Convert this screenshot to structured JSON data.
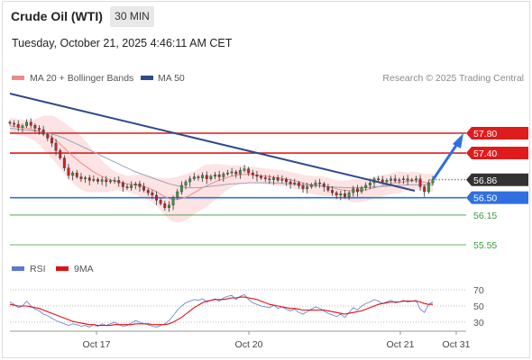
{
  "header": {
    "instrument": "Crude Oil (WTI)",
    "timeframe": "30 MIN",
    "timestamp": "Tuesday, October 21, 2025 4:46:11 AM CET"
  },
  "legend": {
    "items": [
      {
        "label": "MA 20 + Bollinger Bands",
        "color": "#f08a8a"
      },
      {
        "label": "MA 50",
        "color": "#2d4a8a"
      }
    ],
    "copyright": "Research © 2025 Trading Central"
  },
  "rsi_legend": {
    "items": [
      {
        "label": "RSI",
        "color": "#5a78d8"
      },
      {
        "label": "9MA",
        "color": "#dd1111"
      }
    ]
  },
  "chart_data": [
    {
      "type": "candlestick",
      "ylim": [
        55.4,
        58.1
      ],
      "price_levels": [
        {
          "value": 57.8,
          "label": "57.80",
          "kind": "resistance",
          "color": "#e01b1b"
        },
        {
          "value": 57.4,
          "label": "57.40",
          "kind": "resistance",
          "color": "#e01b1b"
        },
        {
          "value": 56.86,
          "label": "56.86",
          "kind": "last_price",
          "color": "#333333"
        },
        {
          "value": 56.5,
          "label": "56.50",
          "kind": "pivot",
          "color": "#2f6fe0"
        },
        {
          "value": 56.15,
          "label": "56.15",
          "kind": "support",
          "color": "#3a9a3a"
        },
        {
          "value": 55.55,
          "label": "55.55",
          "kind": "support",
          "color": "#3a9a3a"
        }
      ],
      "x_labels": [
        "Oct 17",
        "Oct 20",
        "Oct 21",
        "Oct 31"
      ],
      "close": [
        58.0,
        57.98,
        57.92,
        57.95,
        58.02,
        57.96,
        57.9,
        57.87,
        57.78,
        57.7,
        57.6,
        57.45,
        57.3,
        57.1,
        56.95,
        57.0,
        56.92,
        56.88,
        56.9,
        56.85,
        56.87,
        56.83,
        56.86,
        56.82,
        56.84,
        56.85,
        56.8,
        56.72,
        56.7,
        56.75,
        56.78,
        56.72,
        56.65,
        56.6,
        56.55,
        56.45,
        56.38,
        56.3,
        56.35,
        56.5,
        56.62,
        56.75,
        56.82,
        56.88,
        56.92,
        56.9,
        56.95,
        56.88,
        56.93,
        56.96,
        56.92,
        56.98,
        57.0,
        57.02,
        56.98,
        57.05,
        57.08,
        57.0,
        56.96,
        56.93,
        56.9,
        56.88,
        56.86,
        56.9,
        56.85,
        56.87,
        56.82,
        56.78,
        56.8,
        56.74,
        56.68,
        56.72,
        56.76,
        56.8,
        56.78,
        56.72,
        56.65,
        56.6,
        56.55,
        56.58,
        56.52,
        56.6,
        56.68,
        56.62,
        56.7,
        56.75,
        56.8,
        56.88,
        56.86,
        56.82,
        56.85,
        56.88,
        56.84,
        56.86,
        56.88,
        56.85,
        56.86,
        56.88,
        56.72,
        56.62,
        56.8,
        56.86
      ],
      "ma20": [
        57.95,
        57.94,
        57.92,
        57.91,
        57.9,
        57.88,
        57.86,
        57.84,
        57.81,
        57.77,
        57.72,
        57.66,
        57.58,
        57.5,
        57.42,
        57.34,
        57.27,
        57.2,
        57.14,
        57.08,
        57.02,
        56.97,
        56.93,
        56.89,
        56.86,
        56.84,
        56.82,
        56.8,
        56.78,
        56.77,
        56.76,
        56.75,
        56.73,
        56.7,
        56.66,
        56.62,
        56.57,
        56.52,
        56.48,
        56.46,
        56.46,
        56.48,
        56.51,
        56.55,
        56.6,
        56.65,
        56.7,
        56.74,
        56.78,
        56.82,
        56.85,
        56.88,
        56.91,
        56.93,
        56.95,
        56.96,
        56.97,
        56.97,
        56.96,
        56.95,
        56.94,
        56.93,
        56.92,
        56.91,
        56.9,
        56.89,
        56.88,
        56.86,
        56.84,
        56.82,
        56.8,
        56.78,
        56.76,
        56.75,
        56.74,
        56.73,
        56.72,
        56.7,
        56.68,
        56.66,
        56.65,
        56.64,
        56.64,
        56.64,
        56.65,
        56.66,
        56.68,
        56.7,
        56.72,
        56.74,
        56.76,
        56.78,
        56.8,
        56.81,
        56.82,
        56.83,
        56.84,
        56.84,
        56.83,
        56.81,
        56.8,
        56.8
      ],
      "ma50": [
        57.9,
        57.89,
        57.88,
        57.87,
        57.86,
        57.85,
        57.84,
        57.83,
        57.82,
        57.8,
        57.78,
        57.76,
        57.73,
        57.7,
        57.66,
        57.62,
        57.58,
        57.54,
        57.5,
        57.46,
        57.42,
        57.38,
        57.34,
        57.3,
        57.26,
        57.22,
        57.18,
        57.14,
        57.1,
        57.06,
        57.02,
        56.99,
        56.96,
        56.93,
        56.9,
        56.87,
        56.84,
        56.81,
        56.78,
        56.76,
        56.74,
        56.72,
        56.71,
        56.7,
        56.7,
        56.7,
        56.71,
        56.72,
        56.73,
        56.74,
        56.75,
        56.76,
        56.77,
        56.78,
        56.78,
        56.79,
        56.79,
        56.8,
        56.8,
        56.8,
        56.8,
        56.8,
        56.8,
        56.8,
        56.79,
        56.79,
        56.78,
        56.78,
        56.77,
        56.76,
        56.76,
        56.75,
        56.75,
        56.74,
        56.74,
        56.73,
        56.72,
        56.72,
        56.71,
        56.71,
        56.7,
        56.7,
        56.7,
        56.7,
        56.7,
        56.71,
        56.71,
        56.72,
        56.72,
        56.73,
        56.73,
        56.74,
        56.74,
        56.75,
        56.75,
        56.76,
        56.76,
        56.76,
        56.76,
        56.76,
        56.76,
        56.76
      ]
    },
    {
      "type": "line",
      "ylim": [
        20,
        80
      ],
      "y_ticks": [
        70,
        50,
        30
      ],
      "series": [
        {
          "name": "RSI",
          "color": "#5a78d8",
          "values": [
            55,
            52,
            48,
            50,
            56,
            50,
            46,
            44,
            40,
            38,
            35,
            32,
            30,
            28,
            26,
            28,
            27,
            25,
            26,
            24,
            27,
            25,
            28,
            26,
            28,
            30,
            27,
            25,
            26,
            29,
            32,
            30,
            28,
            27,
            25,
            24,
            26,
            28,
            32,
            38,
            45,
            50,
            54,
            56,
            58,
            57,
            59,
            55,
            57,
            59,
            56,
            60,
            62,
            63,
            58,
            62,
            64,
            58,
            54,
            52,
            50,
            49,
            48,
            51,
            47,
            49,
            46,
            44,
            46,
            42,
            40,
            43,
            46,
            49,
            47,
            44,
            41,
            39,
            37,
            40,
            36,
            42,
            48,
            45,
            50,
            53,
            55,
            58,
            56,
            53,
            55,
            57,
            54,
            55,
            57,
            55,
            56,
            57,
            46,
            42,
            52,
            55
          ]
        },
        {
          "name": "9MA",
          "color": "#dd1111",
          "values": [
            52,
            51,
            50,
            50,
            50,
            49,
            48,
            47,
            45,
            43,
            41,
            39,
            37,
            35,
            33,
            31,
            30,
            29,
            28,
            27,
            27,
            26,
            26,
            26,
            26,
            27,
            27,
            27,
            27,
            27,
            28,
            28,
            28,
            28,
            27,
            27,
            27,
            27,
            28,
            30,
            33,
            36,
            40,
            44,
            48,
            51,
            54,
            56,
            57,
            58,
            58,
            58,
            59,
            60,
            60,
            61,
            61,
            60,
            59,
            58,
            56,
            54,
            52,
            51,
            50,
            49,
            48,
            47,
            47,
            46,
            45,
            45,
            45,
            45,
            45,
            45,
            44,
            43,
            42,
            41,
            40,
            41,
            42,
            43,
            44,
            46,
            48,
            50,
            52,
            53,
            54,
            55,
            55,
            55,
            56,
            56,
            56,
            56,
            55,
            53,
            52,
            52
          ]
        }
      ]
    }
  ]
}
